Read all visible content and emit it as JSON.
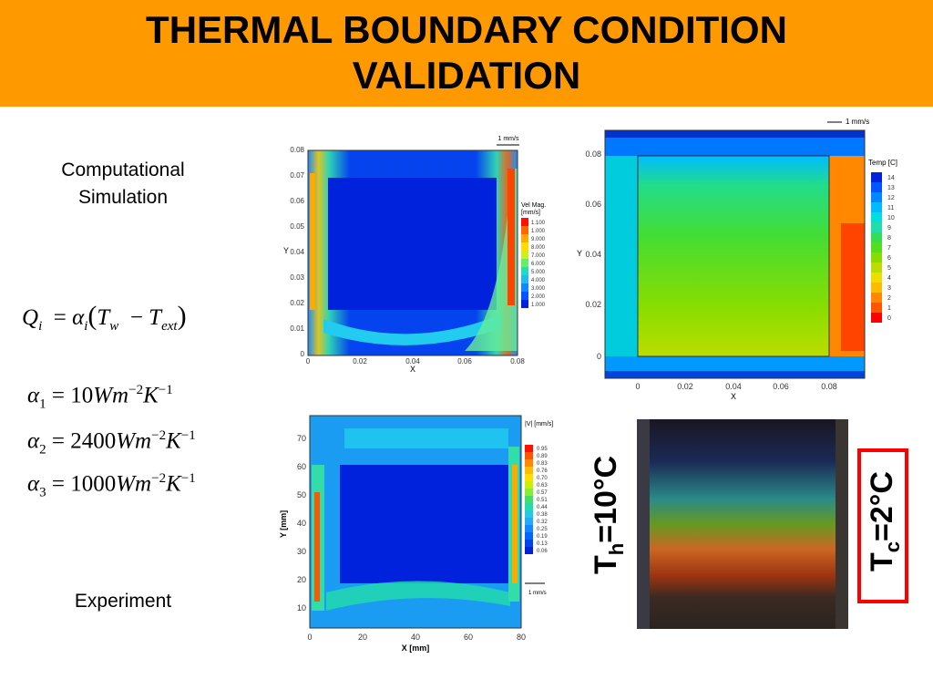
{
  "title": "THERMAL BOUNDARY CONDITION VALIDATION",
  "title_line1": "THERMAL BOUNDARY CONDITION",
  "title_line2": "VALIDATION",
  "labels": {
    "computational_line1": "Computational",
    "computational_line2": "Simulation",
    "experiment": "Experiment"
  },
  "equations": {
    "q": {
      "Q": "Q",
      "i": "i",
      "alpha": "α",
      "T": "T",
      "w": "w",
      "ext": "ext"
    },
    "a1": {
      "sub": "1",
      "value": "10",
      "unit": "Wm",
      "exp1": "−2",
      "K": "K",
      "exp2": "−1"
    },
    "a2": {
      "sub": "2",
      "value": "2400",
      "unit": "Wm",
      "exp1": "−2",
      "K": "K",
      "exp2": "−1"
    },
    "a3": {
      "sub": "3",
      "value": "1000",
      "unit": "Wm",
      "exp1": "−2",
      "K": "K",
      "exp2": "−1"
    }
  },
  "plot_sim_vel": {
    "yticks": [
      "0.08",
      "0.07",
      "0.06",
      "0.05",
      "0.04",
      "0.03",
      "0.02",
      "0.01",
      "0"
    ],
    "xticks": [
      "0",
      "0.02",
      "0.04",
      "0.06",
      "0.08"
    ],
    "xlabel": "X",
    "ylabel": "Y",
    "ref_vector": "1 mm/s",
    "legend_title1": "Vel Mag.",
    "legend_title2": "[mm/s]",
    "legend_values": [
      "1.100",
      "1.000",
      "9.000",
      "8.000",
      "7.000",
      "6.000",
      "5.000",
      "4.000",
      "3.000",
      "2.000",
      "1.000"
    ]
  },
  "plot_sim_temp": {
    "yticks": [
      "0.08",
      "0.06",
      "0.04",
      "0.02",
      "0"
    ],
    "xticks": [
      "0",
      "0.02",
      "0.04",
      "0.06",
      "0.08"
    ],
    "xlabel": "X",
    "ylabel": "Y",
    "ref_vector": "1 mm/s",
    "legend_title": "Temp [C]",
    "legend_values": [
      "14",
      "13",
      "12",
      "11",
      "10",
      "9",
      "8",
      "7",
      "6",
      "5",
      "4",
      "3",
      "2",
      "1",
      "0"
    ]
  },
  "plot_exp_vel": {
    "yticks": [
      "70",
      "60",
      "50",
      "40",
      "30",
      "20",
      "10"
    ],
    "xticks": [
      "0",
      "20",
      "40",
      "60",
      "80"
    ],
    "xlabel": "X [mm]",
    "ylabel": "Y [mm]",
    "ref_vector": "1 mm/s",
    "legend_title": "|V| [mm/s]",
    "legend_values": [
      "0.95",
      "0.89",
      "0.83",
      "0.76",
      "0.70",
      "0.63",
      "0.57",
      "0.51",
      "0.44",
      "0.38",
      "0.32",
      "0.25",
      "0.19",
      "0.13",
      "0.06"
    ]
  },
  "side_labels": {
    "th_T": "T",
    "th_sub": "h",
    "th_val": "=10°C",
    "tc_T": "T",
    "tc_sub": "c",
    "tc_val": "=2°C"
  },
  "colors": {
    "header_bg": "#ff9900",
    "tc_border": "#ff0000"
  }
}
